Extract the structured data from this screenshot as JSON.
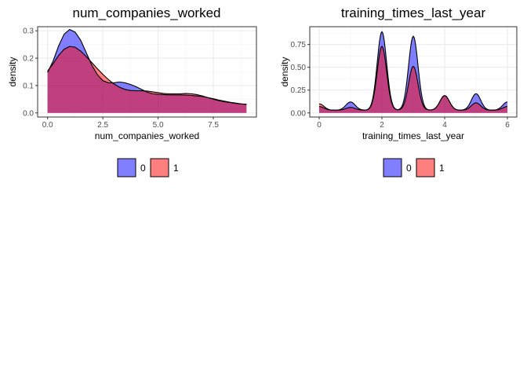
{
  "chart_data": [
    {
      "type": "area",
      "title": "num_companies_worked",
      "xlabel": "num_companies_worked",
      "ylabel": "density",
      "xlim": [
        -0.45,
        9.45
      ],
      "ylim": [
        -0.015,
        0.315
      ],
      "xticks": [
        0,
        2.5,
        5.0,
        7.5
      ],
      "xtick_labels": [
        "0.0",
        "2.5",
        "5.0",
        "7.5"
      ],
      "yticks": [
        0,
        0.1,
        0.2,
        0.3
      ],
      "ytick_labels": [
        "0.0",
        "0.1",
        "0.2",
        "0.3"
      ],
      "grid": true,
      "legend": "bottom",
      "x": [
        0,
        0.25,
        0.5,
        0.75,
        1,
        1.25,
        1.5,
        1.75,
        2,
        2.25,
        2.5,
        2.75,
        3,
        3.25,
        3.5,
        3.75,
        4,
        4.25,
        4.5,
        4.75,
        5,
        5.25,
        5.5,
        5.75,
        6,
        6.25,
        6.5,
        6.75,
        7,
        7.25,
        7.5,
        7.75,
        8,
        8.25,
        8.5,
        8.75,
        9
      ],
      "series": [
        {
          "name": "0",
          "color": "#0000ff",
          "values": [
            0.148,
            0.19,
            0.245,
            0.288,
            0.305,
            0.295,
            0.265,
            0.22,
            0.175,
            0.14,
            0.118,
            0.11,
            0.11,
            0.113,
            0.11,
            0.104,
            0.096,
            0.086,
            0.076,
            0.07,
            0.068,
            0.067,
            0.066,
            0.066,
            0.066,
            0.065,
            0.064,
            0.062,
            0.06,
            0.056,
            0.052,
            0.047,
            0.043,
            0.039,
            0.036,
            0.033,
            0.031
          ]
        },
        {
          "name": "1",
          "color": "#ff0000",
          "values": [
            0.153,
            0.18,
            0.21,
            0.233,
            0.243,
            0.24,
            0.226,
            0.206,
            0.184,
            0.162,
            0.141,
            0.122,
            0.106,
            0.094,
            0.086,
            0.082,
            0.081,
            0.081,
            0.08,
            0.077,
            0.074,
            0.071,
            0.07,
            0.07,
            0.07,
            0.071,
            0.07,
            0.067,
            0.062,
            0.056,
            0.05,
            0.045,
            0.041,
            0.038,
            0.035,
            0.033,
            0.032
          ]
        }
      ]
    },
    {
      "type": "area",
      "title": "training_times_last_year",
      "xlabel": "training_times_last_year",
      "ylabel": "density",
      "xlim": [
        -0.3,
        6.3
      ],
      "ylim": [
        -0.045,
        0.945
      ],
      "xticks": [
        0,
        2,
        4,
        6
      ],
      "xtick_labels": [
        "0",
        "2",
        "4",
        "6"
      ],
      "yticks": [
        0,
        0.25,
        0.5,
        0.75
      ],
      "ytick_labels": [
        "0.00",
        "0.25",
        "0.50",
        "0.75"
      ],
      "grid": true,
      "legend": "bottom",
      "peaks": [
        0,
        1,
        2,
        3,
        4,
        5,
        6
      ],
      "baseline": 0.03,
      "peak_width": 0.15,
      "series": [
        {
          "name": "0",
          "color": "#0000ff",
          "heights": [
            0.07,
            0.12,
            0.89,
            0.84,
            0.19,
            0.21,
            0.12
          ]
        },
        {
          "name": "1",
          "color": "#ff0000",
          "heights": [
            0.1,
            0.06,
            0.73,
            0.51,
            0.19,
            0.11,
            0.07
          ]
        }
      ]
    }
  ]
}
